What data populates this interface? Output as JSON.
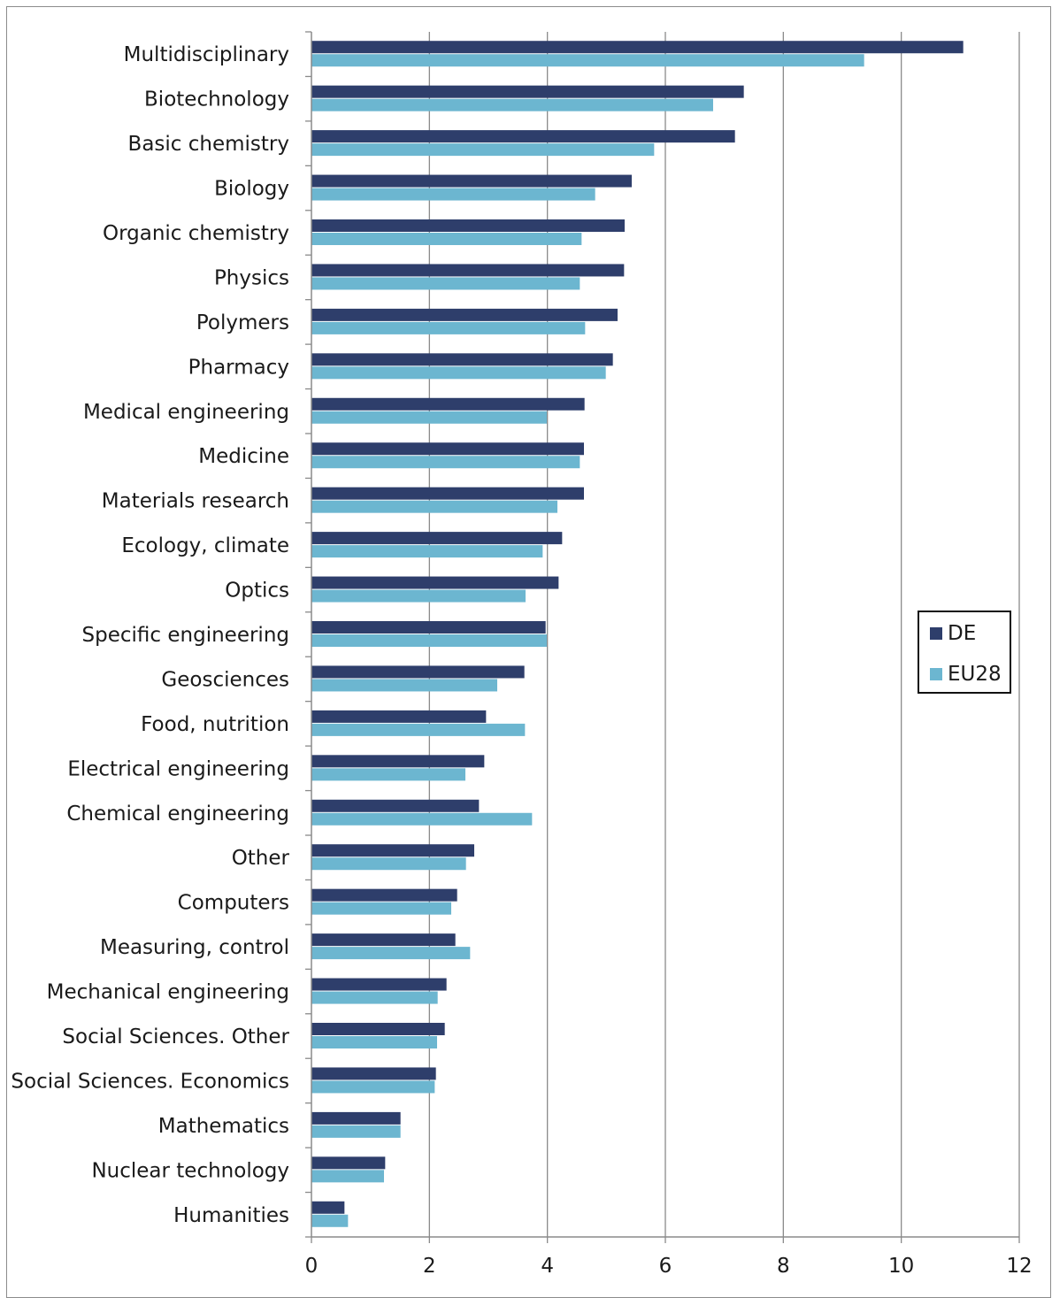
{
  "chart_data": {
    "type": "bar",
    "orientation": "horizontal",
    "categories": [
      "Multidisciplinary",
      "Biotechnology",
      "Basic chemistry",
      "Biology",
      "Organic chemistry",
      "Physics",
      "Polymers",
      "Pharmacy",
      "Medical engineering",
      "Medicine",
      "Materials research",
      "Ecology, climate",
      "Optics",
      "Specific engineering",
      "Geosciences",
      "Food, nutrition",
      "Electrical engineering",
      "Chemical engineering",
      "Other",
      "Computers",
      "Measuring, control",
      "Mechanical engineering",
      "Social Sciences. Other",
      "Social Sciences. Economics",
      "Mathematics",
      "Nuclear technology",
      "Humanities"
    ],
    "series": [
      {
        "name": "DE",
        "color": "#2e3e6b",
        "values": [
          11.05,
          7.33,
          7.18,
          5.43,
          5.31,
          5.3,
          5.19,
          5.11,
          4.63,
          4.62,
          4.62,
          4.25,
          4.19,
          3.97,
          3.61,
          2.96,
          2.93,
          2.84,
          2.76,
          2.47,
          2.44,
          2.29,
          2.26,
          2.11,
          1.51,
          1.25,
          0.56
        ]
      },
      {
        "name": "EU28",
        "color": "#6cb6d0",
        "values": [
          9.37,
          6.81,
          5.81,
          4.81,
          4.58,
          4.55,
          4.64,
          4.99,
          3.99,
          4.55,
          4.17,
          3.92,
          3.63,
          3.99,
          3.15,
          3.62,
          2.61,
          3.74,
          2.62,
          2.37,
          2.69,
          2.14,
          2.13,
          2.09,
          1.51,
          1.23,
          0.62
        ]
      }
    ],
    "xlim": [
      0,
      12
    ],
    "xticks": [
      "0",
      "2",
      "4",
      "6",
      "8",
      "10",
      "12"
    ],
    "grid": "vertical",
    "legend_position": "right"
  }
}
